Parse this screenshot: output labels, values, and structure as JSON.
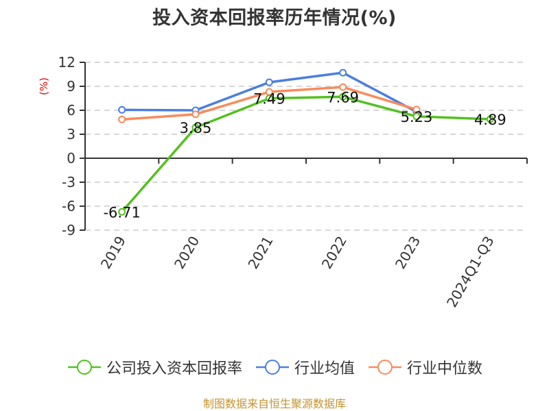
{
  "title": "投入资本回报率历年情况(%)",
  "source": "制图数据来自恒生聚源数据库",
  "colors": {
    "company": "#52c11f",
    "industry_avg": "#4a7ee0",
    "industry_median": "#fa8a5a",
    "unit_label": "#e60000",
    "source": "#c39333"
  },
  "legend": [
    {
      "label": "公司投入资本回报率",
      "color": "#52c11f"
    },
    {
      "label": "行业均值",
      "color": "#4a7ee0"
    },
    {
      "label": "行业中位数",
      "color": "#fa8a5a"
    }
  ],
  "chart_data": {
    "type": "line",
    "title": "投入资本回报率历年情况(%)",
    "xlabel": "",
    "ylabel": "(%)",
    "categories": [
      "2019",
      "2020",
      "2021",
      "2022",
      "2023",
      "2024Q1-Q3"
    ],
    "yticks": [
      12,
      9,
      6,
      3,
      0,
      -3,
      -6,
      -9
    ],
    "ylim": [
      -9,
      12
    ],
    "grid": true,
    "legend_position": "bottom",
    "series": [
      {
        "name": "公司投入资本回报率",
        "color": "#52c11f",
        "values": [
          -6.71,
          3.85,
          7.49,
          7.69,
          5.23,
          4.89
        ],
        "labels": [
          "-6.71",
          "3.85",
          "7.49",
          "7.69",
          "5.23",
          "4.89"
        ]
      },
      {
        "name": "行业均值",
        "color": "#4a7ee0",
        "values": [
          6.05,
          6.0,
          9.5,
          10.7,
          5.8,
          null
        ]
      },
      {
        "name": "行业中位数",
        "color": "#fa8a5a",
        "values": [
          4.85,
          5.5,
          8.3,
          8.9,
          6.1,
          null
        ]
      }
    ]
  }
}
